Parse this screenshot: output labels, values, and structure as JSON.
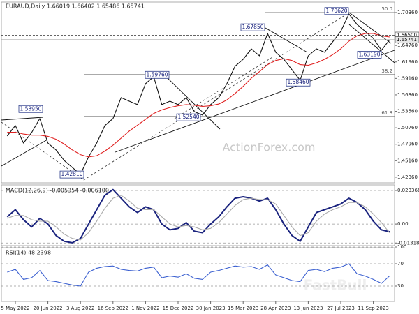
{
  "chart_data": [
    {
      "type": "line",
      "title": "EURAUD,Daily 1.66019 1.66402 1.65486 1.65741",
      "watermark": "ActionForex.com",
      "categories": [
        null,
        "5 May 2022",
        null,
        null,
        null,
        "20 Jun 2022",
        null,
        null,
        null,
        "3 Aug 2022",
        null,
        null,
        null,
        "16 Sep 2022",
        null,
        null,
        null,
        "1 Nov 2022",
        null,
        null,
        null,
        "15 Dec 2022",
        null,
        null,
        null,
        "30 Jan 2023",
        null,
        null,
        null,
        "15 Mar 2023",
        null,
        null,
        null,
        "28 Apr 2023",
        null,
        null,
        null,
        "13 Jun 2023",
        null,
        null,
        null,
        "27 Jul 2023",
        null,
        null,
        null,
        "11 Sep 2023",
        null,
        null
      ],
      "series": [
        {
          "color": "#111111",
          "values": [
            1.4936,
            1.5114,
            1.4817,
            1.4995,
            1.5233,
            1.4817,
            1.4699,
            1.4521,
            1.4402,
            1.4283,
            1.458,
            1.4817,
            1.5114,
            1.5233,
            1.5589,
            1.5529,
            1.547,
            1.5826,
            1.5945,
            1.547,
            1.5529,
            1.547,
            1.5589,
            1.5351,
            1.5292,
            1.547,
            1.5589,
            1.5826,
            1.6123,
            1.6241,
            1.6419,
            1.63,
            1.668,
            1.636,
            1.6241,
            1.6063,
            1.5885,
            1.63,
            1.6419,
            1.636,
            1.6538,
            1.6716,
            1.7012,
            1.6834,
            1.6716,
            1.6597,
            1.6395,
            1.65741
          ]
        },
        {
          "color": "#e02020",
          "values": [
            1.5,
            1.5,
            1.497,
            1.495,
            1.495,
            1.493,
            1.488,
            1.48,
            1.47,
            1.462,
            1.458,
            1.46,
            1.468,
            1.478,
            1.49,
            1.502,
            1.512,
            1.522,
            1.532,
            1.538,
            1.542,
            1.545,
            1.547,
            1.546,
            1.544,
            1.545,
            1.548,
            1.555,
            1.566,
            1.578,
            1.592,
            1.603,
            1.615,
            1.622,
            1.625,
            1.622,
            1.615,
            1.614,
            1.618,
            1.624,
            1.632,
            1.642,
            1.655,
            1.664,
            1.668,
            1.668,
            1.664,
            1.662
          ]
        }
      ],
      "ylim": [
        1.414,
        1.719
      ],
      "yticks": [
        {
          "value": 1.7036,
          "label": "1.70360"
        },
        {
          "value": 1.6476,
          "label": "1.64760"
        },
        {
          "value": 1.6196,
          "label": "1.61960"
        },
        {
          "value": 1.5916,
          "label": "1.59160"
        },
        {
          "value": 1.5636,
          "label": "1.56360"
        },
        {
          "value": 1.5356,
          "label": "1.53560"
        },
        {
          "value": 1.5076,
          "label": "1.50760"
        },
        {
          "value": 1.4796,
          "label": "1.47960"
        },
        {
          "value": 1.4516,
          "label": "1.45160"
        },
        {
          "value": 1.4236,
          "label": "1.42360"
        }
      ],
      "price_labels": [
        {
          "value": 1.665,
          "label": "1.66500"
        },
        {
          "value": 1.65741,
          "label": "1.65741"
        }
      ],
      "annotations": [
        {
          "value": 1.7062,
          "label": "1.70620"
        },
        {
          "value": 1.6785,
          "label": "1.67850"
        },
        {
          "value": 1.5976,
          "label": "1.59760"
        },
        {
          "value": 1.5395,
          "label": "1.53950"
        },
        {
          "value": 1.5254,
          "label": "1.52540"
        },
        {
          "value": 1.5846,
          "label": "1.58460"
        },
        {
          "value": 1.6319,
          "label": "1.63190"
        },
        {
          "value": 1.4281,
          "label": "1.42810"
        }
      ],
      "fib_levels": [
        {
          "value": 1.7036,
          "label": "50.0"
        },
        {
          "value": 1.598,
          "label": "38.2"
        },
        {
          "value": 1.5268,
          "label": "61.8"
        }
      ]
    },
    {
      "type": "line",
      "title": "MACD(12,26,9) -0.005354 -0.006100",
      "series": [
        {
          "color": "#1a237e",
          "values": [
            0.005,
            0.01,
            0.003,
            -0.002,
            0.004,
            0.0,
            -0.008,
            -0.012,
            -0.013,
            -0.01,
            0.0,
            0.01,
            0.02,
            0.024,
            0.018,
            0.012,
            0.008,
            0.012,
            0.01,
            0.0,
            -0.004,
            -0.003,
            0.001,
            -0.005,
            -0.006,
            0.0,
            0.005,
            0.012,
            0.018,
            0.019,
            0.018,
            0.016,
            0.018,
            0.01,
            0.0,
            -0.008,
            -0.012,
            -0.002,
            0.008,
            0.01,
            0.012,
            0.014,
            0.018,
            0.015,
            0.01,
            0.002,
            -0.004,
            -0.005354
          ]
        },
        {
          "color": "#aaaaaa",
          "values": [
            0.004,
            0.006,
            0.006,
            0.003,
            0.002,
            0.002,
            -0.002,
            -0.007,
            -0.01,
            -0.011,
            -0.006,
            0.002,
            0.011,
            0.018,
            0.02,
            0.016,
            0.011,
            0.01,
            0.01,
            0.005,
            0.0,
            -0.002,
            -0.001,
            -0.002,
            -0.004,
            -0.003,
            0.001,
            0.007,
            0.013,
            0.017,
            0.018,
            0.017,
            0.017,
            0.014,
            0.006,
            -0.002,
            -0.008,
            -0.006,
            0.002,
            0.007,
            0.01,
            0.012,
            0.015,
            0.015,
            0.012,
            0.007,
            0.001,
            -0.0061
          ]
        }
      ],
      "ylim": [
        -0.015,
        0.0258
      ],
      "yticks": [
        0.023366,
        {
          "value": 0,
          "label": "0.00"
        },
        -0.013186
      ]
    },
    {
      "type": "line",
      "title": "RSI(14) 48.2398",
      "watermark": "FastBull",
      "series": [
        {
          "color": "#3a5fd0",
          "values": [
            55,
            60,
            42,
            45,
            58,
            40,
            38,
            35,
            32,
            30,
            55,
            62,
            65,
            66,
            60,
            58,
            57,
            62,
            64,
            45,
            48,
            46,
            52,
            44,
            42,
            55,
            58,
            62,
            66,
            64,
            65,
            60,
            68,
            50,
            45,
            40,
            38,
            58,
            60,
            56,
            62,
            64,
            70,
            52,
            48,
            42,
            35,
            48.2398
          ]
        }
      ],
      "ylim": [
        0,
        100
      ],
      "yticks": [
        100,
        70,
        30
      ]
    }
  ]
}
